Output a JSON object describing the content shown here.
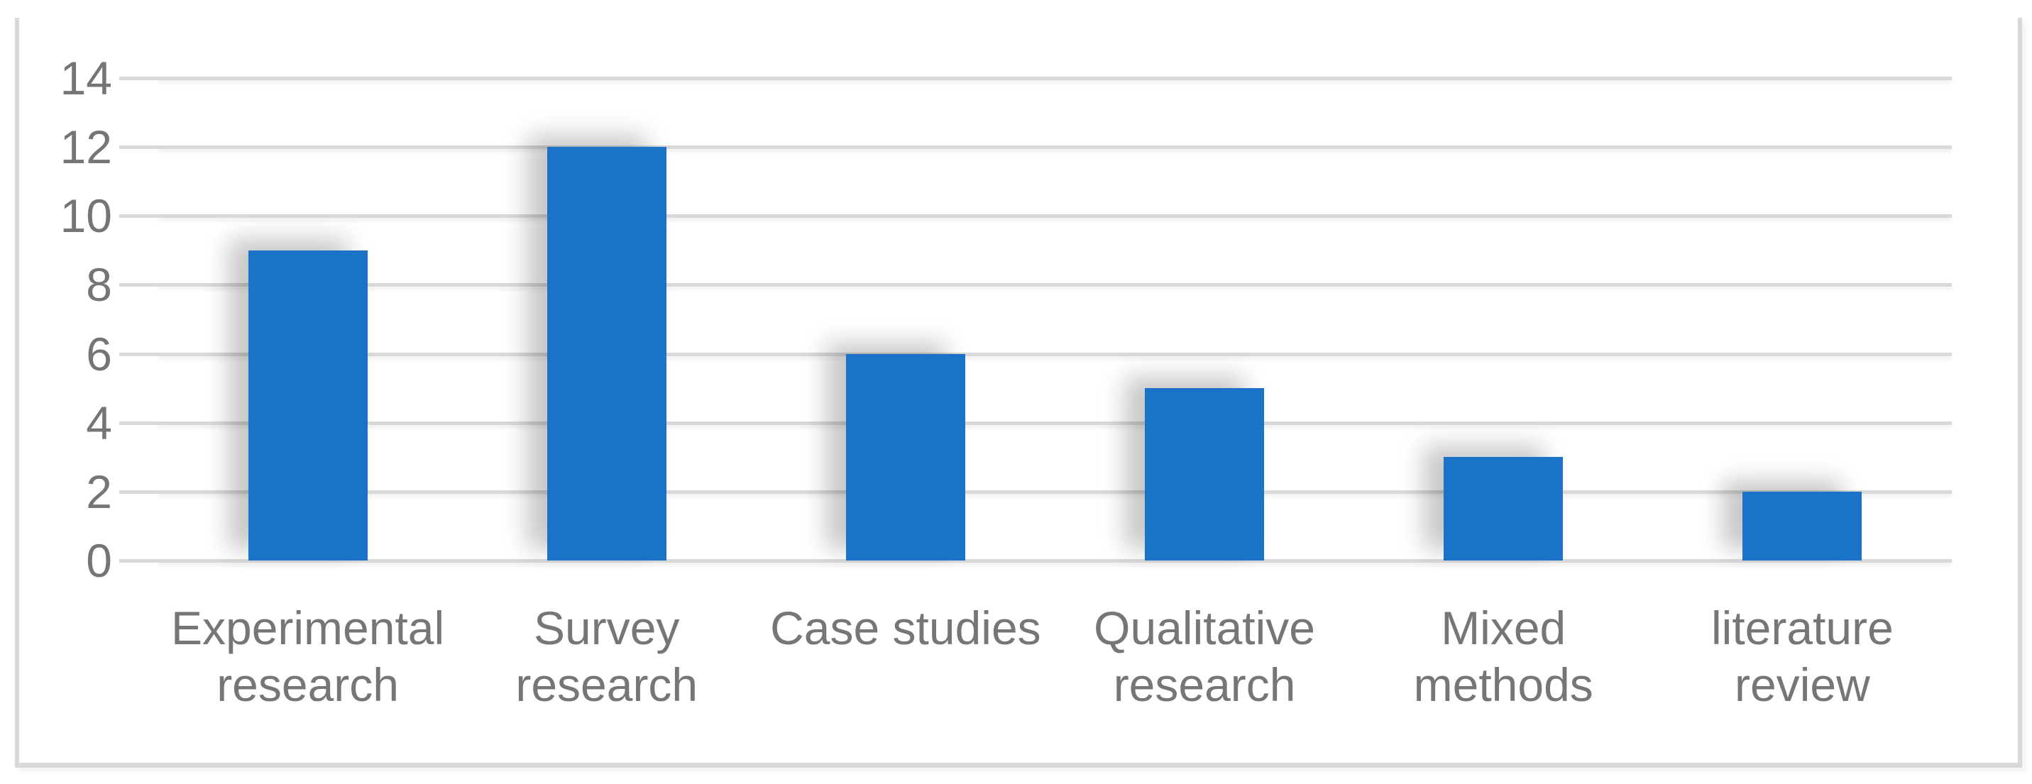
{
  "chart_data": {
    "type": "bar",
    "categories": [
      "Experimental research",
      "Survey research",
      "Case studies",
      "Qualitative research",
      "Mixed methods",
      "literature review"
    ],
    "values": [
      9,
      12,
      6,
      5,
      3,
      2
    ],
    "title": "",
    "xlabel": "",
    "ylabel": "",
    "ylim": [
      0,
      14
    ],
    "yticks": [
      0,
      2,
      4,
      6,
      8,
      10,
      12,
      14
    ],
    "grid": true,
    "legend": false,
    "bar_color": "#1A73C7",
    "gridline_color": "#D9D9D9",
    "frame_border_color": "#D9D9D9",
    "axis_text_color": "#757575"
  }
}
